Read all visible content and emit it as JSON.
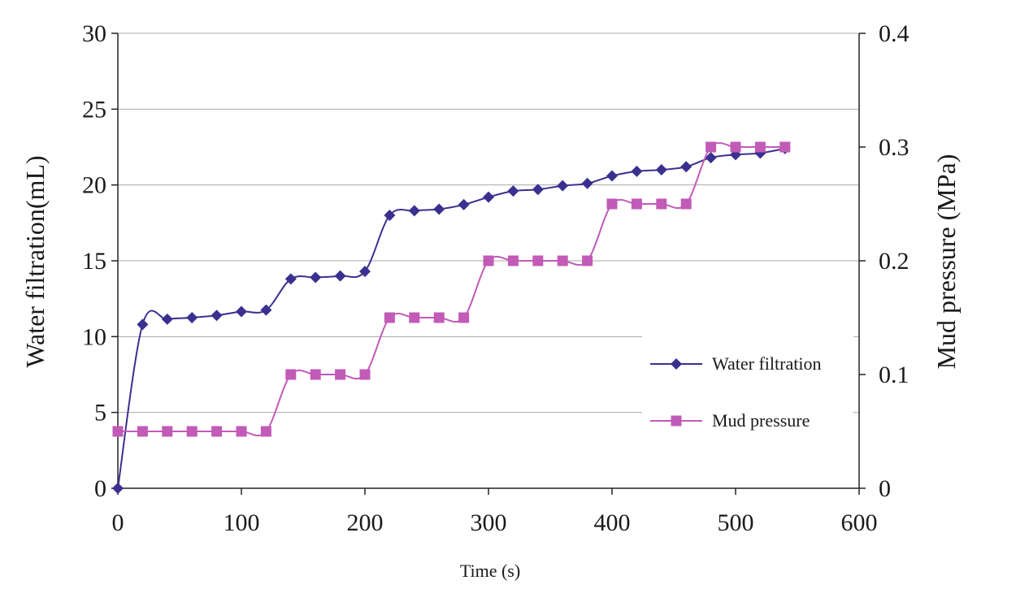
{
  "chart_data": {
    "type": "line",
    "xlabel": "Time (s)",
    "ylabel": "Water filtration(mL)",
    "y2label": "Mud pressure (MPa)",
    "xlim": [
      0,
      600
    ],
    "ylim": [
      0,
      30
    ],
    "y2lim": [
      0,
      0.4
    ],
    "x_ticks": [
      "0",
      "100",
      "200",
      "300",
      "400",
      "500",
      "600"
    ],
    "y_ticks": [
      "0",
      "5",
      "10",
      "15",
      "20",
      "25",
      "30"
    ],
    "y2_ticks": [
      "0",
      "0.1",
      "0.2",
      "0.3",
      "0.4"
    ],
    "grid": true,
    "legend_position": "lower-right",
    "series": [
      {
        "name": "Water filtration",
        "axis": "left",
        "marker": "diamond",
        "color": "#3b2f8f",
        "x": [
          0,
          20,
          40,
          60,
          80,
          100,
          120,
          140,
          160,
          180,
          200,
          220,
          240,
          260,
          280,
          300,
          320,
          340,
          360,
          380,
          400,
          420,
          440,
          460,
          480,
          500,
          520,
          540
        ],
        "values": [
          0,
          10.8,
          11.15,
          11.25,
          11.4,
          11.65,
          11.75,
          13.8,
          13.9,
          14.0,
          14.3,
          18.0,
          18.3,
          18.4,
          18.7,
          19.2,
          19.6,
          19.7,
          19.95,
          20.1,
          20.6,
          20.9,
          21.0,
          21.2,
          21.8,
          22.0,
          22.1,
          22.4
        ]
      },
      {
        "name": "Mud pressure",
        "axis": "right",
        "marker": "square",
        "color": "#c25ab8",
        "x": [
          0,
          20,
          40,
          60,
          80,
          100,
          120,
          140,
          160,
          180,
          200,
          220,
          240,
          260,
          280,
          300,
          320,
          340,
          360,
          380,
          400,
          420,
          440,
          460,
          480,
          500,
          520,
          540
        ],
        "values": [
          0.05,
          0.05,
          0.05,
          0.05,
          0.05,
          0.05,
          0.05,
          0.1,
          0.1,
          0.1,
          0.1,
          0.15,
          0.15,
          0.15,
          0.15,
          0.2,
          0.2,
          0.2,
          0.2,
          0.2,
          0.25,
          0.25,
          0.25,
          0.25,
          0.3,
          0.3,
          0.3,
          0.3
        ]
      }
    ]
  }
}
